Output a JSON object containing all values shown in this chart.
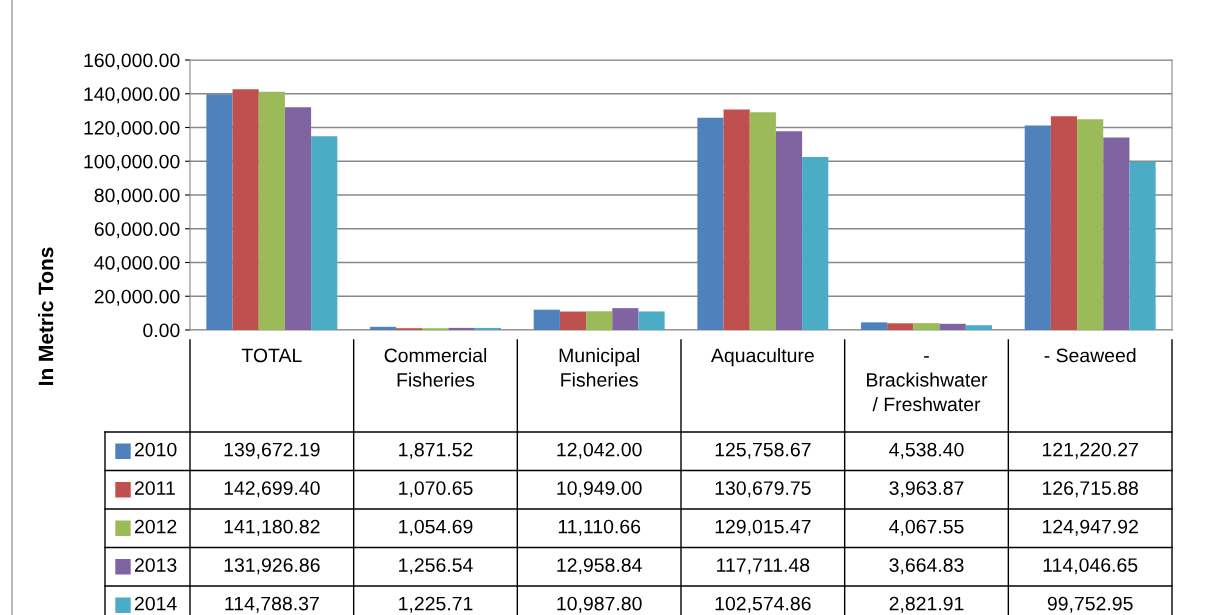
{
  "chart_data": {
    "type": "bar",
    "ylabel": "In Metric Tons",
    "categories": [
      "TOTAL",
      "Commercial\nFisheries",
      "Municipal\nFisheries",
      "Aquaculture",
      "-\nBrackishwater\n/ Freshwater",
      "- Seaweed"
    ],
    "series": [
      {
        "name": "2010",
        "color": "#4f81bd",
        "values": [
          139672.19,
          1871.52,
          12042.0,
          125758.67,
          4538.4,
          121220.27
        ],
        "value_labels": [
          "139,672.19",
          "1,871.52",
          "12,042.00",
          "125,758.67",
          "4,538.40",
          "121,220.27"
        ]
      },
      {
        "name": "2011",
        "color": "#c0504d",
        "values": [
          142699.4,
          1070.65,
          10949.0,
          130679.75,
          3963.87,
          126715.88
        ],
        "value_labels": [
          "142,699.40",
          "1,070.65",
          "10,949.00",
          "130,679.75",
          "3,963.87",
          "126,715.88"
        ]
      },
      {
        "name": "2012",
        "color": "#9bbb59",
        "values": [
          141180.82,
          1054.69,
          11110.66,
          129015.47,
          4067.55,
          124947.92
        ],
        "value_labels": [
          "141,180.82",
          "1,054.69",
          "11,110.66",
          "129,015.47",
          "4,067.55",
          "124,947.92"
        ]
      },
      {
        "name": "2013",
        "color": "#8064a2",
        "values": [
          131926.86,
          1256.54,
          12958.84,
          117711.48,
          3664.83,
          114046.65
        ],
        "value_labels": [
          "131,926.86",
          "1,256.54",
          "12,958.84",
          "117,711.48",
          "3,664.83",
          "114,046.65"
        ]
      },
      {
        "name": "2014",
        "color": "#4bacc6",
        "values": [
          114788.37,
          1225.71,
          10987.8,
          102574.86,
          2821.91,
          99752.95
        ],
        "value_labels": [
          "114,788.37",
          "1,225.71",
          "10,987.80",
          "102,574.86",
          "2,821.91",
          "99,752.95"
        ]
      }
    ],
    "ylim": [
      0,
      160000
    ],
    "yticks": [
      {
        "value": 0,
        "label": "0.00"
      },
      {
        "value": 20000,
        "label": "20,000.00"
      },
      {
        "value": 40000,
        "label": "40,000.00"
      },
      {
        "value": 60000,
        "label": "60,000.00"
      },
      {
        "value": 80000,
        "label": "80,000.00"
      },
      {
        "value": 100000,
        "label": "100,000.00"
      },
      {
        "value": 120000,
        "label": "120,000.00"
      },
      {
        "value": 140000,
        "label": "140,000.00"
      },
      {
        "value": 160000,
        "label": "160,000.00"
      }
    ],
    "grid": "y",
    "legend": "bottom"
  }
}
